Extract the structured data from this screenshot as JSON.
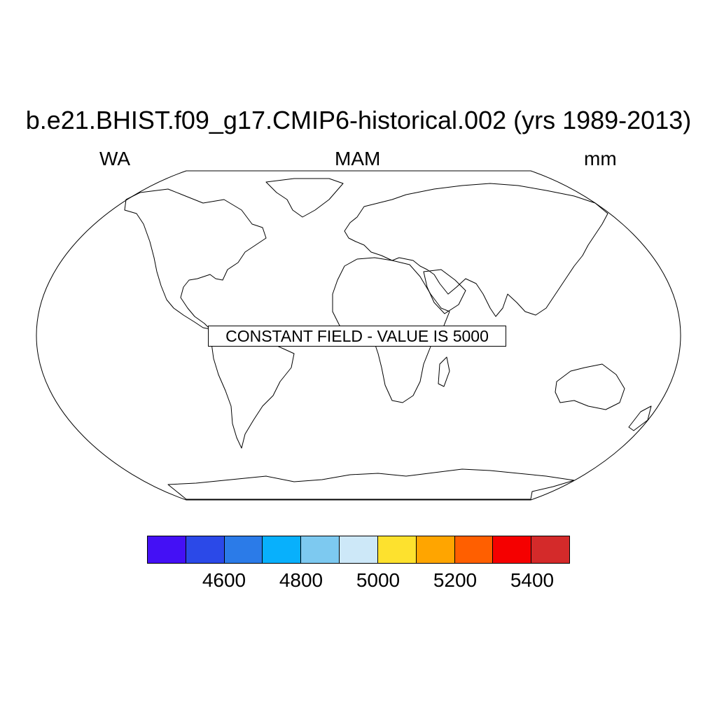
{
  "title": "b.e21.BHIST.f09_g17.CMIP6-historical.002 (yrs 1989-2013)",
  "left_label": "WA",
  "center_label": "MAM",
  "right_label": "mm",
  "map": {
    "projection": "Robinson",
    "outline": "continental coastlines",
    "notice": "CONSTANT FIELD - VALUE IS 5000"
  },
  "colorbar": {
    "colors": [
      "#4410f5",
      "#2b49e8",
      "#2b7be8",
      "#08b0fc",
      "#7dc9f0",
      "#cde8f8",
      "#fde12e",
      "#ffa500",
      "#ff5f00",
      "#f50000",
      "#d42a2a"
    ],
    "tick_labels": [
      "4600",
      "4800",
      "5000",
      "5200",
      "5400"
    ]
  }
}
